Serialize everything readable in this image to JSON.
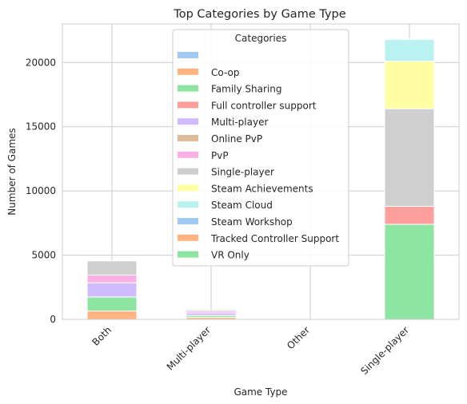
{
  "chart_data": {
    "type": "bar",
    "stacked": true,
    "title": "Top Categories by Game Type",
    "xlabel": "Game Type",
    "ylabel": "Number of Games",
    "categories": [
      "Both",
      "Multi-player",
      "Other",
      "Single-player"
    ],
    "ylim": [
      0,
      23000
    ],
    "yticks": [
      0,
      5000,
      10000,
      15000,
      20000
    ],
    "grid": true,
    "legend": {
      "title": "Categories",
      "position": "top-center"
    },
    "series": [
      {
        "name": "",
        "color": "#a1c9f4",
        "values": [
          0,
          0,
          0,
          0
        ]
      },
      {
        "name": "Co-op",
        "color": "#ffb482",
        "values": [
          650,
          150,
          0,
          0
        ]
      },
      {
        "name": "Family Sharing",
        "color": "#8de5a1",
        "values": [
          1100,
          150,
          0,
          7400
        ]
      },
      {
        "name": "Full controller support",
        "color": "#ff9f9b",
        "values": [
          0,
          0,
          0,
          1400
        ]
      },
      {
        "name": "Multi-player",
        "color": "#d0bbff",
        "values": [
          1100,
          200,
          0,
          0
        ]
      },
      {
        "name": "Online PvP",
        "color": "#debb9b",
        "values": [
          0,
          0,
          0,
          0
        ]
      },
      {
        "name": "PvP",
        "color": "#fab0e4",
        "values": [
          600,
          150,
          0,
          0
        ]
      },
      {
        "name": "Single-player",
        "color": "#cfcfcf",
        "values": [
          1100,
          100,
          0,
          7600
        ]
      },
      {
        "name": "Steam Achievements",
        "color": "#fffea3",
        "values": [
          0,
          0,
          0,
          3700
        ]
      },
      {
        "name": "Steam Cloud",
        "color": "#b9f2f0",
        "values": [
          0,
          0,
          0,
          1700
        ]
      },
      {
        "name": "Steam Workshop",
        "color": "#a1c9f4",
        "values": [
          0,
          0,
          0,
          0
        ]
      },
      {
        "name": "Tracked Controller Support",
        "color": "#ffb482",
        "values": [
          0,
          0,
          0,
          0
        ]
      },
      {
        "name": "VR Only",
        "color": "#8de5a1",
        "values": [
          0,
          0,
          0,
          0
        ]
      }
    ]
  }
}
